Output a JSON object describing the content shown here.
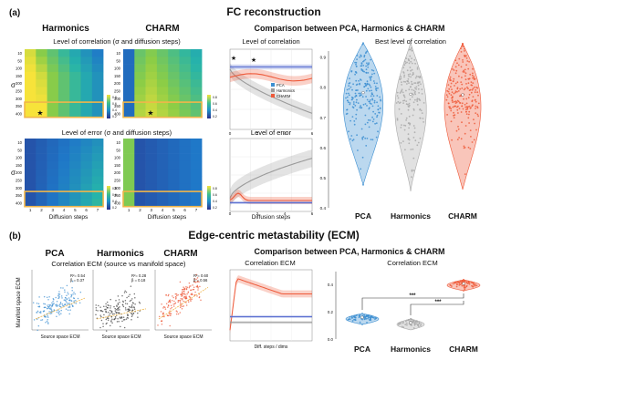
{
  "panel_a": {
    "tag": "(a)",
    "title": "FC reconstruction",
    "col_harmonics": "Harmonics",
    "col_charm": "CHARM",
    "comparison_title": "Comparison between PCA, Harmonics & CHARM",
    "heatmap_corr_title": "Level of correlation (σ and diffusion steps)",
    "heatmap_err_title": "Level of error (σ and diffusion steps)",
    "sigma_label": "σ",
    "sigma_ticks": [
      "10",
      "50",
      "100",
      "150",
      "200",
      "250",
      "300",
      "350",
      "400"
    ],
    "diffusion_xlabel": "Diffusion steps",
    "diffusion_ticks": [
      "1",
      "2",
      "3",
      "4",
      "5",
      "6",
      "7"
    ],
    "line_corr_title": "Level of correlation",
    "line_err_title": "Level of error",
    "legend": [
      "PCA",
      "Harmonics",
      "CHARM"
    ],
    "line_x_ticks": [
      "0",
      "2",
      "4",
      "6"
    ],
    "line_xlabel": "Diffusion steps",
    "best_title": "Best level of correlation",
    "violin_y_ticks": [
      "0.4",
      "0.5",
      "0.6",
      "0.7",
      "0.8",
      "0.9"
    ],
    "violin_labels": [
      "PCA",
      "Harmonics",
      "CHARM"
    ],
    "colorbar_ticks": [
      "0.8",
      "0.6",
      "0.4",
      "0.2"
    ]
  },
  "panel_b": {
    "tag": "(b)",
    "title": "Edge-centric metastability (ECM)",
    "col_pca": "PCA",
    "col_harmonics": "Harmonics",
    "col_charm": "CHARM",
    "comparison_title": "Comparison between PCA, Harmonics & CHARM",
    "scatter_title": "Correlation ECM (source vs manifold space)",
    "scatter_xlabel": "Source space ECM",
    "scatter_ylabel": "Manifold space ECM",
    "scatter_stats": [
      [
        "R²= 0.54",
        "β = 0.37"
      ],
      [
        "R²= 0.28",
        "β = 0.18"
      ],
      [
        "R²= 0.60",
        "β = 0.56"
      ]
    ],
    "line_title": "Correlation ECM",
    "line_xlabel": "Diff. steps / dims",
    "violin_title": "Correlation ECM",
    "violin_labels": [
      "PCA",
      "Harmonics",
      "CHARM"
    ],
    "significance": [
      "***",
      "***"
    ],
    "violin_y_ticks": [
      "0.0",
      "0.2",
      "0.4"
    ]
  },
  "colors": {
    "pca": "#3d8fd1",
    "harmonics": "#a9a9a9",
    "charm": "#ee5a3a",
    "highlight": "#f0b64a"
  }
}
